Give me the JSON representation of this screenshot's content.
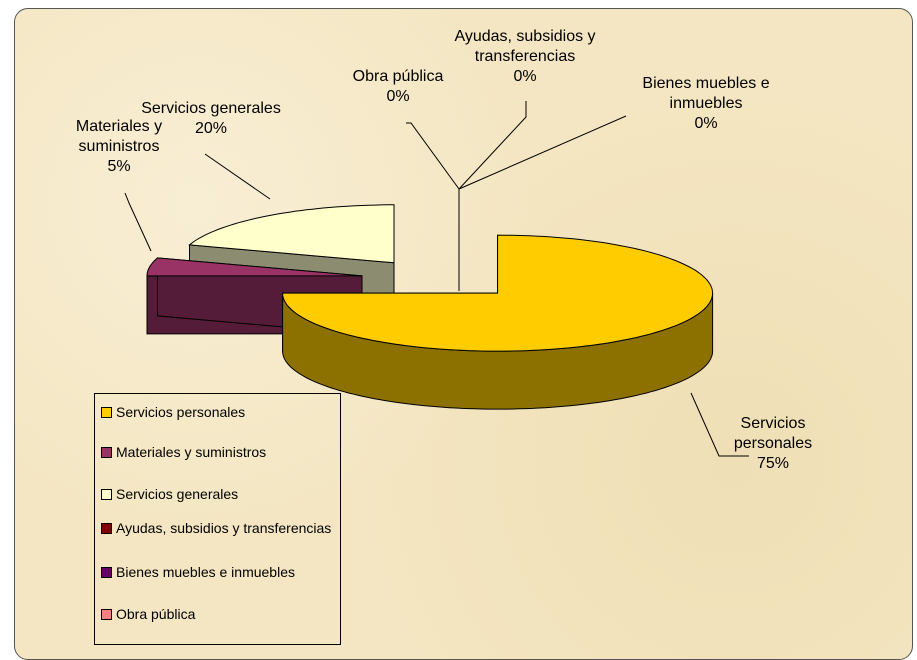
{
  "chart_data": {
    "type": "pie3d",
    "categories": [
      "Servicios personales",
      "Materiales y suministros",
      "Servicios generales",
      "Ayudas, subsidios y transferencias",
      "Bienes muebles e inmuebles",
      "Obra pública"
    ],
    "values": [
      75,
      5,
      20,
      0,
      0,
      0
    ],
    "value_labels": [
      "75%",
      "5%",
      "20%",
      "0%",
      "0%",
      "0%"
    ],
    "colors": [
      "#ffcc00",
      "#993366",
      "#ffffcc",
      "#800000",
      "#660066",
      "#ff8080"
    ],
    "legend": "bottom-left"
  }
}
